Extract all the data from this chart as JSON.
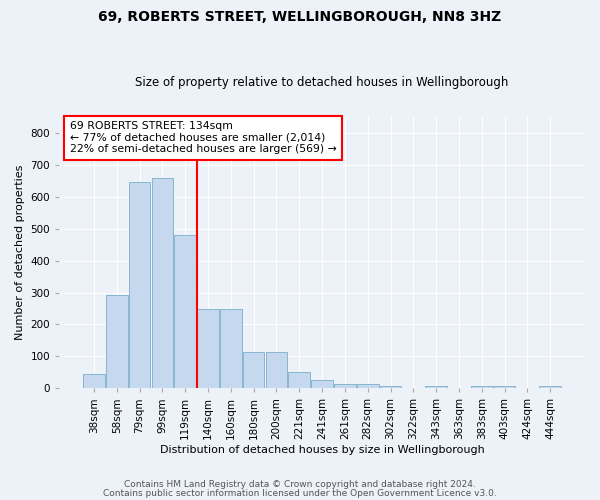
{
  "title1": "69, ROBERTS STREET, WELLINGBOROUGH, NN8 3HZ",
  "title2": "Size of property relative to detached houses in Wellingborough",
  "xlabel": "Distribution of detached houses by size in Wellingborough",
  "ylabel": "Number of detached properties",
  "categories": [
    "38sqm",
    "58sqm",
    "79sqm",
    "99sqm",
    "119sqm",
    "140sqm",
    "160sqm",
    "180sqm",
    "200sqm",
    "221sqm",
    "241sqm",
    "261sqm",
    "282sqm",
    "302sqm",
    "322sqm",
    "343sqm",
    "363sqm",
    "383sqm",
    "403sqm",
    "424sqm",
    "444sqm"
  ],
  "values": [
    45,
    292,
    648,
    660,
    480,
    250,
    250,
    113,
    113,
    50,
    25,
    15,
    15,
    8,
    0,
    8,
    0,
    8,
    8,
    0,
    8
  ],
  "bar_color": "#c5d8ed",
  "bar_edge_color": "#7aaecb",
  "vline_pos": 4.5,
  "annotation_line1": "69 ROBERTS STREET: 134sqm",
  "annotation_line2": "← 77% of detached houses are smaller (2,014)",
  "annotation_line3": "22% of semi-detached houses are larger (569) →",
  "footer1": "Contains HM Land Registry data © Crown copyright and database right 2024.",
  "footer2": "Contains public sector information licensed under the Open Government Licence v3.0.",
  "ylim": [
    0,
    850
  ],
  "yticks": [
    0,
    100,
    200,
    300,
    400,
    500,
    600,
    700,
    800
  ],
  "background_color": "#edf1f8",
  "plot_bg_color": "#edf1f8",
  "title_fontsize": 10,
  "subtitle_fontsize": 8.5,
  "ylabel_fontsize": 8,
  "xlabel_fontsize": 8,
  "tick_fontsize": 7.5,
  "footer_fontsize": 6.5,
  "annot_fontsize": 7.8
}
